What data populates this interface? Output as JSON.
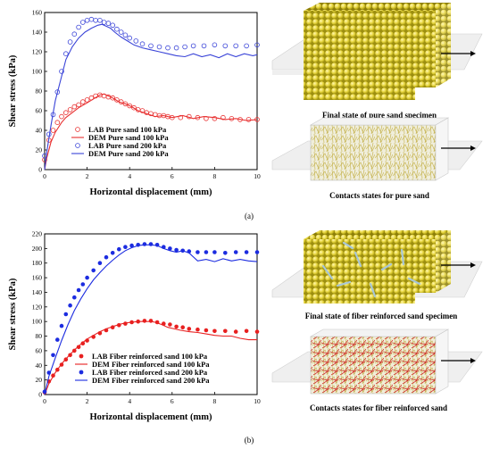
{
  "panels": [
    {
      "label": "(a)",
      "caption_top": "Final state of pure sand specimen",
      "caption_bottom": "Contacts states for pure sand",
      "chart": {
        "type": "line",
        "xlabel": "Horizontal displacement (mm)",
        "ylabel": "Shear stress (kPa)",
        "xlim": [
          0,
          10
        ],
        "ylim": [
          0,
          160
        ],
        "xticks": [
          "0",
          "2",
          "4",
          "6",
          "8",
          "10"
        ],
        "yticks": [
          "0",
          "20",
          "40",
          "60",
          "80",
          "100",
          "120",
          "140",
          "160"
        ],
        "legend_position": "bottom-right",
        "series": [
          {
            "name": "LAB Pure sand 100 kPa",
            "kind": "open-circle",
            "color": "#e83030",
            "x": [
              0,
              0.2,
              0.4,
              0.6,
              0.8,
              1.0,
              1.2,
              1.4,
              1.6,
              1.8,
              2.0,
              2.2,
              2.4,
              2.6,
              2.8,
              3.0,
              3.2,
              3.4,
              3.6,
              3.8,
              4.0,
              4.2,
              4.4,
              4.6,
              4.8,
              5.0,
              5.2,
              5.4,
              5.6,
              5.8,
              6.0,
              6.4,
              6.8,
              7.2,
              7.6,
              8.0,
              8.4,
              8.8,
              9.2,
              9.6,
              10.0
            ],
            "y": [
              10,
              30,
              40,
              48,
              54,
              58,
              61,
              64,
              66,
              69,
              71,
              73,
              75,
              76,
              75,
              74,
              73,
              71,
              69,
              67,
              65,
              63,
              61,
              60,
              58,
              57,
              56,
              55,
              55,
              54,
              53,
              53,
              54,
              53,
              52,
              52,
              53,
              52,
              51,
              51,
              51
            ]
          },
          {
            "name": "DEM Pure sand 100 kPa",
            "kind": "line",
            "color": "#e83030",
            "x": [
              0,
              0.1,
              0.3,
              0.5,
              0.8,
              1.0,
              1.3,
              1.6,
              2.0,
              2.3,
              2.6,
              2.8,
              3.0,
              3.2,
              3.5,
              3.8,
              4.1,
              4.4,
              4.8,
              5.2,
              5.6,
              6.0,
              6.5,
              7.0,
              7.5,
              8.0,
              8.5,
              9.0,
              9.5,
              10.0
            ],
            "y": [
              0,
              12,
              28,
              38,
              48,
              53,
              58,
              63,
              68,
              72,
              76,
              77,
              75,
              73,
              69,
              67,
              64,
              60,
              57,
              54,
              55,
              53,
              55,
              52,
              54,
              53,
              51,
              52,
              50,
              51
            ]
          },
          {
            "name": "LAB Pure sand 200 kPa",
            "kind": "open-circle",
            "color": "#3a44d8",
            "x": [
              0,
              0.2,
              0.4,
              0.6,
              0.8,
              1.0,
              1.2,
              1.4,
              1.6,
              1.8,
              2.0,
              2.2,
              2.4,
              2.6,
              2.8,
              3.0,
              3.2,
              3.4,
              3.6,
              3.8,
              4.0,
              4.3,
              4.6,
              5.0,
              5.4,
              5.8,
              6.2,
              6.6,
              7.0,
              7.5,
              8.0,
              8.5,
              9.0,
              9.5,
              10.0
            ],
            "y": [
              14,
              36,
              56,
              79,
              100,
              118,
              130,
              138,
              145,
              150,
              152,
              153,
              152,
              152,
              150,
              149,
              147,
              143,
              140,
              137,
              134,
              131,
              128,
              126,
              125,
              124,
              124,
              125,
              126,
              126,
              127,
              126,
              126,
              126,
              127
            ]
          },
          {
            "name": "DEM Pure sand 200 kPa",
            "kind": "line",
            "color": "#3a44d8",
            "x": [
              0,
              0.1,
              0.3,
              0.5,
              0.8,
              1.0,
              1.3,
              1.6,
              1.9,
              2.2,
              2.5,
              2.7,
              2.9,
              3.1,
              3.3,
              3.6,
              3.9,
              4.2,
              4.6,
              5.0,
              5.4,
              5.8,
              6.2,
              6.6,
              7.0,
              7.4,
              7.8,
              8.2,
              8.6,
              9.0,
              9.4,
              9.8,
              10.0
            ],
            "y": [
              0,
              18,
              45,
              70,
              95,
              112,
              125,
              134,
              140,
              144,
              147,
              148,
              146,
              144,
              140,
              135,
              131,
              127,
              124,
              122,
              120,
              118,
              116,
              115,
              118,
              115,
              117,
              114,
              118,
              115,
              118,
              116,
              117
            ]
          }
        ]
      }
    },
    {
      "label": "(b)",
      "caption_top": "Final state of fiber reinforced sand specimen",
      "caption_bottom": "Contacts states for fiber reinforced sand",
      "chart": {
        "type": "line",
        "xlabel": "Horizontal displacement (mm)",
        "ylabel": "Shear stress (kPa)",
        "xlim": [
          0,
          10
        ],
        "ylim": [
          0,
          220
        ],
        "xticks": [
          "0",
          "2",
          "4",
          "6",
          "8",
          "10"
        ],
        "yticks": [
          "0",
          "20",
          "40",
          "60",
          "80",
          "100",
          "120",
          "140",
          "160",
          "180",
          "200",
          "220"
        ],
        "legend_position": "bottom-right",
        "series": [
          {
            "name": "LAB Fiber reinforced sand 100 kPa",
            "kind": "filled-circle",
            "color": "#e82020",
            "x": [
              0,
              0.2,
              0.4,
              0.6,
              0.8,
              1.0,
              1.2,
              1.4,
              1.6,
              1.8,
              2.0,
              2.3,
              2.6,
              2.9,
              3.2,
              3.5,
              3.8,
              4.1,
              4.4,
              4.7,
              5.0,
              5.3,
              5.6,
              5.9,
              6.2,
              6.5,
              6.8,
              7.2,
              7.6,
              8.0,
              8.5,
              9.0,
              9.5,
              10.0
            ],
            "y": [
              3,
              18,
              26,
              34,
              41,
              48,
              54,
              60,
              65,
              70,
              74,
              79,
              84,
              88,
              92,
              95,
              97,
              99,
              100,
              101,
              101,
              99,
              97,
              96,
              93,
              92,
              90,
              89,
              88,
              87,
              87,
              86,
              87,
              86
            ]
          },
          {
            "name": "DEM Fiber reinforced sand 100 kPa",
            "kind": "line",
            "color": "#e82020",
            "x": [
              0,
              0.2,
              0.5,
              0.8,
              1.1,
              1.4,
              1.7,
              2.0,
              2.3,
              2.6,
              2.9,
              3.2,
              3.5,
              3.8,
              4.1,
              4.4,
              4.7,
              5.0,
              5.2,
              5.5,
              5.8,
              6.1,
              6.4,
              6.8,
              7.2,
              7.6,
              8.0,
              8.4,
              8.8,
              9.2,
              9.6,
              10.0
            ],
            "y": [
              0,
              15,
              30,
              42,
              52,
              61,
              69,
              76,
              81,
              86,
              90,
              93,
              96,
              98,
              99,
              100,
              100,
              100,
              99,
              96,
              92,
              90,
              88,
              86,
              85,
              83,
              81,
              80,
              80,
              77,
              75,
              75
            ]
          },
          {
            "name": "LAB Fiber reinforced sand 200 kPa",
            "kind": "filled-circle",
            "color": "#1c2ce0",
            "x": [
              0,
              0.2,
              0.4,
              0.6,
              0.8,
              1.0,
              1.2,
              1.4,
              1.6,
              1.8,
              2.0,
              2.3,
              2.6,
              2.9,
              3.2,
              3.5,
              3.8,
              4.1,
              4.4,
              4.7,
              5.0,
              5.3,
              5.6,
              5.9,
              6.2,
              6.5,
              6.8,
              7.2,
              7.6,
              8.0,
              8.5,
              9.0,
              9.5,
              10.0
            ],
            "y": [
              4,
              30,
              54,
              75,
              94,
              110,
              122,
              133,
              143,
              151,
              160,
              170,
              180,
              188,
              194,
              199,
              202,
              204,
              205,
              206,
              206,
              205,
              202,
              200,
              198,
              197,
              196,
              195,
              195,
              195,
              194,
              195,
              195,
              195
            ]
          },
          {
            "name": "DEM Fiber reinforced sand 200 kPa",
            "kind": "line",
            "color": "#1c2ce0",
            "x": [
              0,
              0.2,
              0.5,
              0.8,
              1.1,
              1.4,
              1.7,
              2.0,
              2.3,
              2.6,
              2.9,
              3.2,
              3.5,
              3.8,
              4.1,
              4.4,
              4.7,
              5.0,
              5.3,
              5.6,
              5.9,
              6.2,
              6.5,
              6.8,
              7.2,
              7.6,
              8.0,
              8.4,
              8.8,
              9.2,
              9.6,
              10.0
            ],
            "y": [
              0,
              25,
              50,
              74,
              96,
              115,
              131,
              145,
              157,
              167,
              176,
              184,
              191,
              197,
              201,
              204,
              205,
              205,
              204,
              200,
              197,
              195,
              197,
              194,
              183,
              185,
              182,
              186,
              183,
              185,
              183,
              182
            ]
          }
        ]
      }
    }
  ]
}
